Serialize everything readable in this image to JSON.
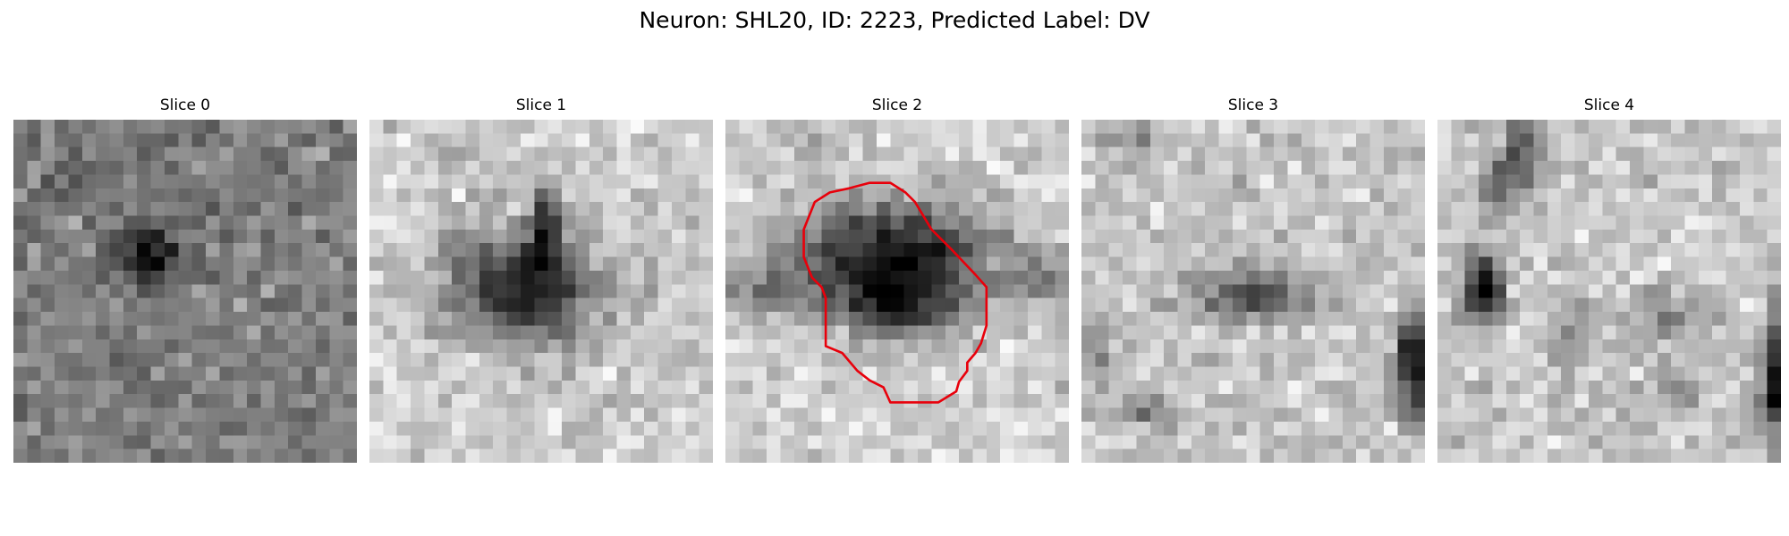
{
  "figure": {
    "title": "Neuron: SHL20, ID: 2223, Predicted Label: DV",
    "grid_size": 25,
    "outline_color": "#e8000b",
    "outline_slice": 2,
    "outline_polygon": [
      [
        9.0,
        5.0
      ],
      [
        10.5,
        4.6
      ],
      [
        12.0,
        4.6
      ],
      [
        13.1,
        5.3
      ],
      [
        13.8,
        6.0
      ],
      [
        15.0,
        8.0
      ],
      [
        16.5,
        9.5
      ],
      [
        18.2,
        11.3
      ],
      [
        19.0,
        12.2
      ],
      [
        19.0,
        15.0
      ],
      [
        18.6,
        16.3
      ],
      [
        18.2,
        17.0
      ],
      [
        17.6,
        17.7
      ],
      [
        17.6,
        18.3
      ],
      [
        17.0,
        19.1
      ],
      [
        16.8,
        19.8
      ],
      [
        15.5,
        20.6
      ],
      [
        14.0,
        20.6
      ],
      [
        13.0,
        20.6
      ],
      [
        12.0,
        20.6
      ],
      [
        11.5,
        19.5
      ],
      [
        10.5,
        19.0
      ],
      [
        9.6,
        18.3
      ],
      [
        8.5,
        17.0
      ],
      [
        7.3,
        16.5
      ],
      [
        7.3,
        14.5
      ],
      [
        7.3,
        13.0
      ],
      [
        7.0,
        12.2
      ],
      [
        6.3,
        11.5
      ],
      [
        5.7,
        10.0
      ],
      [
        5.7,
        8.0
      ],
      [
        6.5,
        6.0
      ],
      [
        7.6,
        5.3
      ]
    ],
    "panels": [
      {
        "title": "Slice 0",
        "base": 128,
        "blobs": [
          {
            "cx": 9.7,
            "cy": 9.5,
            "rx": 2.8,
            "ry": 1.8,
            "d": 110
          },
          {
            "cx": 4.8,
            "cy": 4.6,
            "rx": 1.7,
            "ry": 1.4,
            "d": 45
          },
          {
            "cx": 9.8,
            "cy": 11.0,
            "rx": 1.2,
            "ry": 1.2,
            "d": 45
          }
        ]
      },
      {
        "title": "Slice 1",
        "base": 205,
        "blobs": [
          {
            "cx": 11.2,
            "cy": 12.2,
            "rx": 5.3,
            "ry": 4.0,
            "d": 185
          },
          {
            "cx": 12.8,
            "cy": 7.5,
            "rx": 0.9,
            "ry": 2.5,
            "d": 160
          },
          {
            "cx": 6.3,
            "cy": 2.7,
            "rx": 1.2,
            "ry": 1.2,
            "d": 40
          },
          {
            "cx": 20.5,
            "cy": 11.5,
            "rx": 1.3,
            "ry": 1.5,
            "d": 45
          }
        ]
      },
      {
        "title": "Slice 2",
        "base": 210,
        "blobs": [
          {
            "cx": 12.2,
            "cy": 10.5,
            "rx": 7.0,
            "ry": 4.4,
            "d": 205
          },
          {
            "cx": 2.2,
            "cy": 12.5,
            "rx": 3.5,
            "ry": 1.6,
            "d": 70
          },
          {
            "cx": 23.3,
            "cy": 11.5,
            "rx": 2.3,
            "ry": 1.5,
            "d": 95
          },
          {
            "cx": 12.5,
            "cy": 13.8,
            "rx": 3.5,
            "ry": 1.6,
            "d": 70
          },
          {
            "cx": 5.0,
            "cy": 1.0,
            "rx": 2.0,
            "ry": 1.2,
            "d": 40
          }
        ]
      },
      {
        "title": "Slice 3",
        "base": 200,
        "blobs": [
          {
            "cx": 12.6,
            "cy": 12.7,
            "rx": 4.3,
            "ry": 1.9,
            "d": 120
          },
          {
            "cx": 24.2,
            "cy": 17.7,
            "rx": 1.3,
            "ry": 3.6,
            "d": 210
          },
          {
            "cx": 4.5,
            "cy": 1.8,
            "rx": 2.8,
            "ry": 1.4,
            "d": 55
          },
          {
            "cx": 1.0,
            "cy": 17.0,
            "rx": 1.5,
            "ry": 3.0,
            "d": 45
          },
          {
            "cx": 5.0,
            "cy": 21.3,
            "rx": 1.6,
            "ry": 1.3,
            "d": 65
          }
        ]
      },
      {
        "title": "Slice 4",
        "base": 200,
        "blobs": [
          {
            "cx": 3.3,
            "cy": 12.2,
            "rx": 1.4,
            "ry": 2.6,
            "d": 190
          },
          {
            "cx": 6.0,
            "cy": 2.5,
            "rx": 1.5,
            "ry": 3.0,
            "d": 120
          },
          {
            "cx": 4.2,
            "cy": 5.0,
            "rx": 1.0,
            "ry": 2.0,
            "d": 90
          },
          {
            "cx": 24.4,
            "cy": 19.0,
            "rx": 0.9,
            "ry": 4.6,
            "d": 180
          },
          {
            "cx": 10.0,
            "cy": 15.5,
            "rx": 2.0,
            "ry": 3.0,
            "d": 50
          },
          {
            "cx": 17.0,
            "cy": 14.5,
            "rx": 3.0,
            "ry": 2.0,
            "d": 55
          },
          {
            "cx": 17.5,
            "cy": 19.5,
            "rx": 1.5,
            "ry": 2.0,
            "d": 55
          }
        ]
      }
    ]
  }
}
